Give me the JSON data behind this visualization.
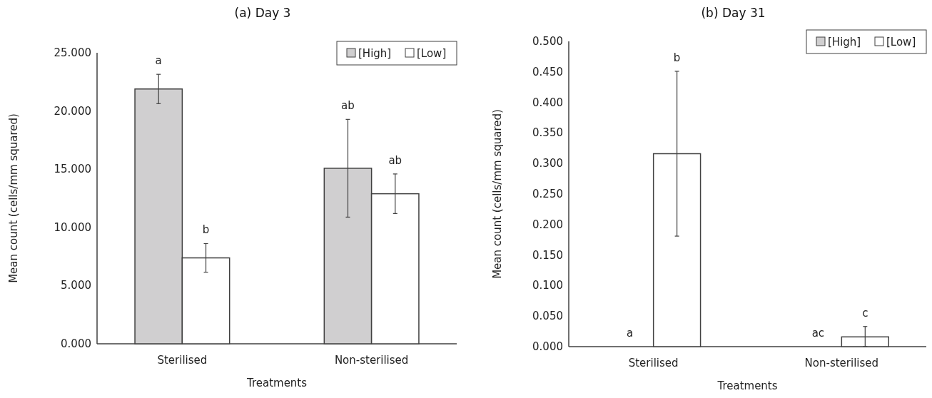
{
  "chart_data": [
    {
      "type": "bar",
      "title": "(a) Day 3",
      "xlabel": "Treatments",
      "ylabel": "Mean count (cells/mm squared)",
      "categories": [
        "Sterilised",
        "Non-sterilised"
      ],
      "legend": "top right",
      "series": [
        {
          "name": "[High]",
          "color": "#d0cfd0",
          "values": [
            21.89,
            15.08
          ],
          "errors": [
            1.26,
            4.2
          ]
        },
        {
          "name": "[Low]",
          "color": "#ffffff",
          "values": [
            7.38,
            12.89
          ],
          "errors": [
            1.23,
            1.7
          ]
        }
      ],
      "annotations": [
        "a",
        "ab",
        "b",
        "ab"
      ],
      "ylim": [
        0,
        25
      ],
      "yticks": [
        {
          "value": 0,
          "label": "0.000"
        },
        {
          "value": 5,
          "label": "5.000"
        },
        {
          "value": 10,
          "label": "10.000"
        },
        {
          "value": 15,
          "label": "15.000"
        },
        {
          "value": 20,
          "label": "20.000"
        },
        {
          "value": 25,
          "label": "25.000"
        }
      ]
    },
    {
      "type": "bar",
      "title": "(b) Day 31",
      "xlabel": "Treatments",
      "ylabel": "Mean count (cells/mm squared)",
      "categories": [
        "Sterilised",
        "Non-sterilised"
      ],
      "legend": "top right",
      "series": [
        {
          "name": "[High]",
          "color": "#d0cfd0",
          "values": [
            0,
            0
          ]
        },
        {
          "name": "[Low]",
          "color": "#ffffff",
          "values": [
            0.316,
            0.016
          ],
          "errors": [
            0.135,
            [
              0,
              0.033
            ]
          ]
        }
      ],
      "annotations": [
        "a",
        "ac",
        "b",
        "c"
      ],
      "ylim": [
        0,
        0.5
      ],
      "yticks": [
        {
          "value": 0,
          "label": "0.000"
        },
        {
          "value": 0.05,
          "label": "0.050"
        },
        {
          "value": 0.1,
          "label": "0.100"
        },
        {
          "value": 0.15,
          "label": "0.150"
        },
        {
          "value": 0.2,
          "label": "0.200"
        },
        {
          "value": 0.25,
          "label": "0.250"
        },
        {
          "value": 0.3,
          "label": "0.300"
        },
        {
          "value": 0.35,
          "label": "0.350"
        },
        {
          "value": 0.4,
          "label": "0.400"
        },
        {
          "value": 0.45,
          "label": "0.450"
        },
        {
          "value": 0.5,
          "label": "0.500"
        }
      ]
    }
  ]
}
